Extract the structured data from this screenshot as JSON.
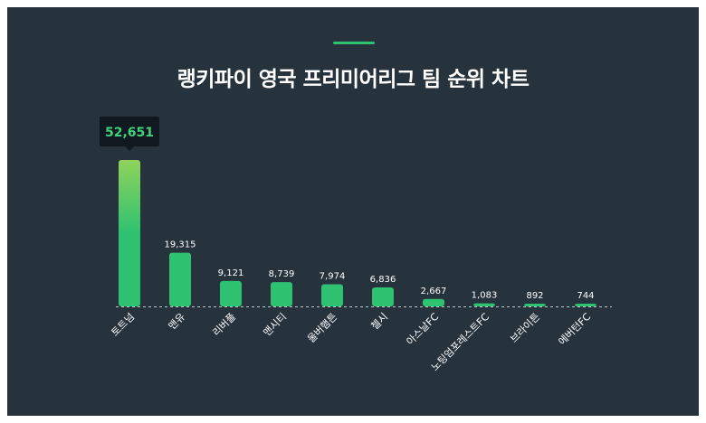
{
  "colors": {
    "background": "#26333d",
    "accent": "#2ec271",
    "bar_top_highlight": "#8fd35b",
    "text": "#ffffff",
    "tooltip_bg": "#101820",
    "tooltip_text": "#3ed37a",
    "baseline": "#c0c6cc"
  },
  "chart_data": {
    "type": "bar",
    "title": "랭키파이 영국 프리미어리그 팀 순위 차트",
    "categories": [
      "토트넘",
      "맨유",
      "리버풀",
      "맨시티",
      "울버햄튼",
      "첼시",
      "아스날FC",
      "노팅엄포레스트FC",
      "브라이튼",
      "에버턴FC"
    ],
    "values": [
      52651,
      19315,
      9121,
      8739,
      7974,
      6836,
      2667,
      1083,
      892,
      744
    ],
    "value_labels": [
      "52,651",
      "19,315",
      "9,121",
      "8,739",
      "7,974",
      "6,836",
      "2,667",
      "1,083",
      "892",
      "744"
    ],
    "highlight_index": 0,
    "ylim": [
      0,
      52651
    ],
    "grid": false,
    "baseline": "dashed"
  }
}
